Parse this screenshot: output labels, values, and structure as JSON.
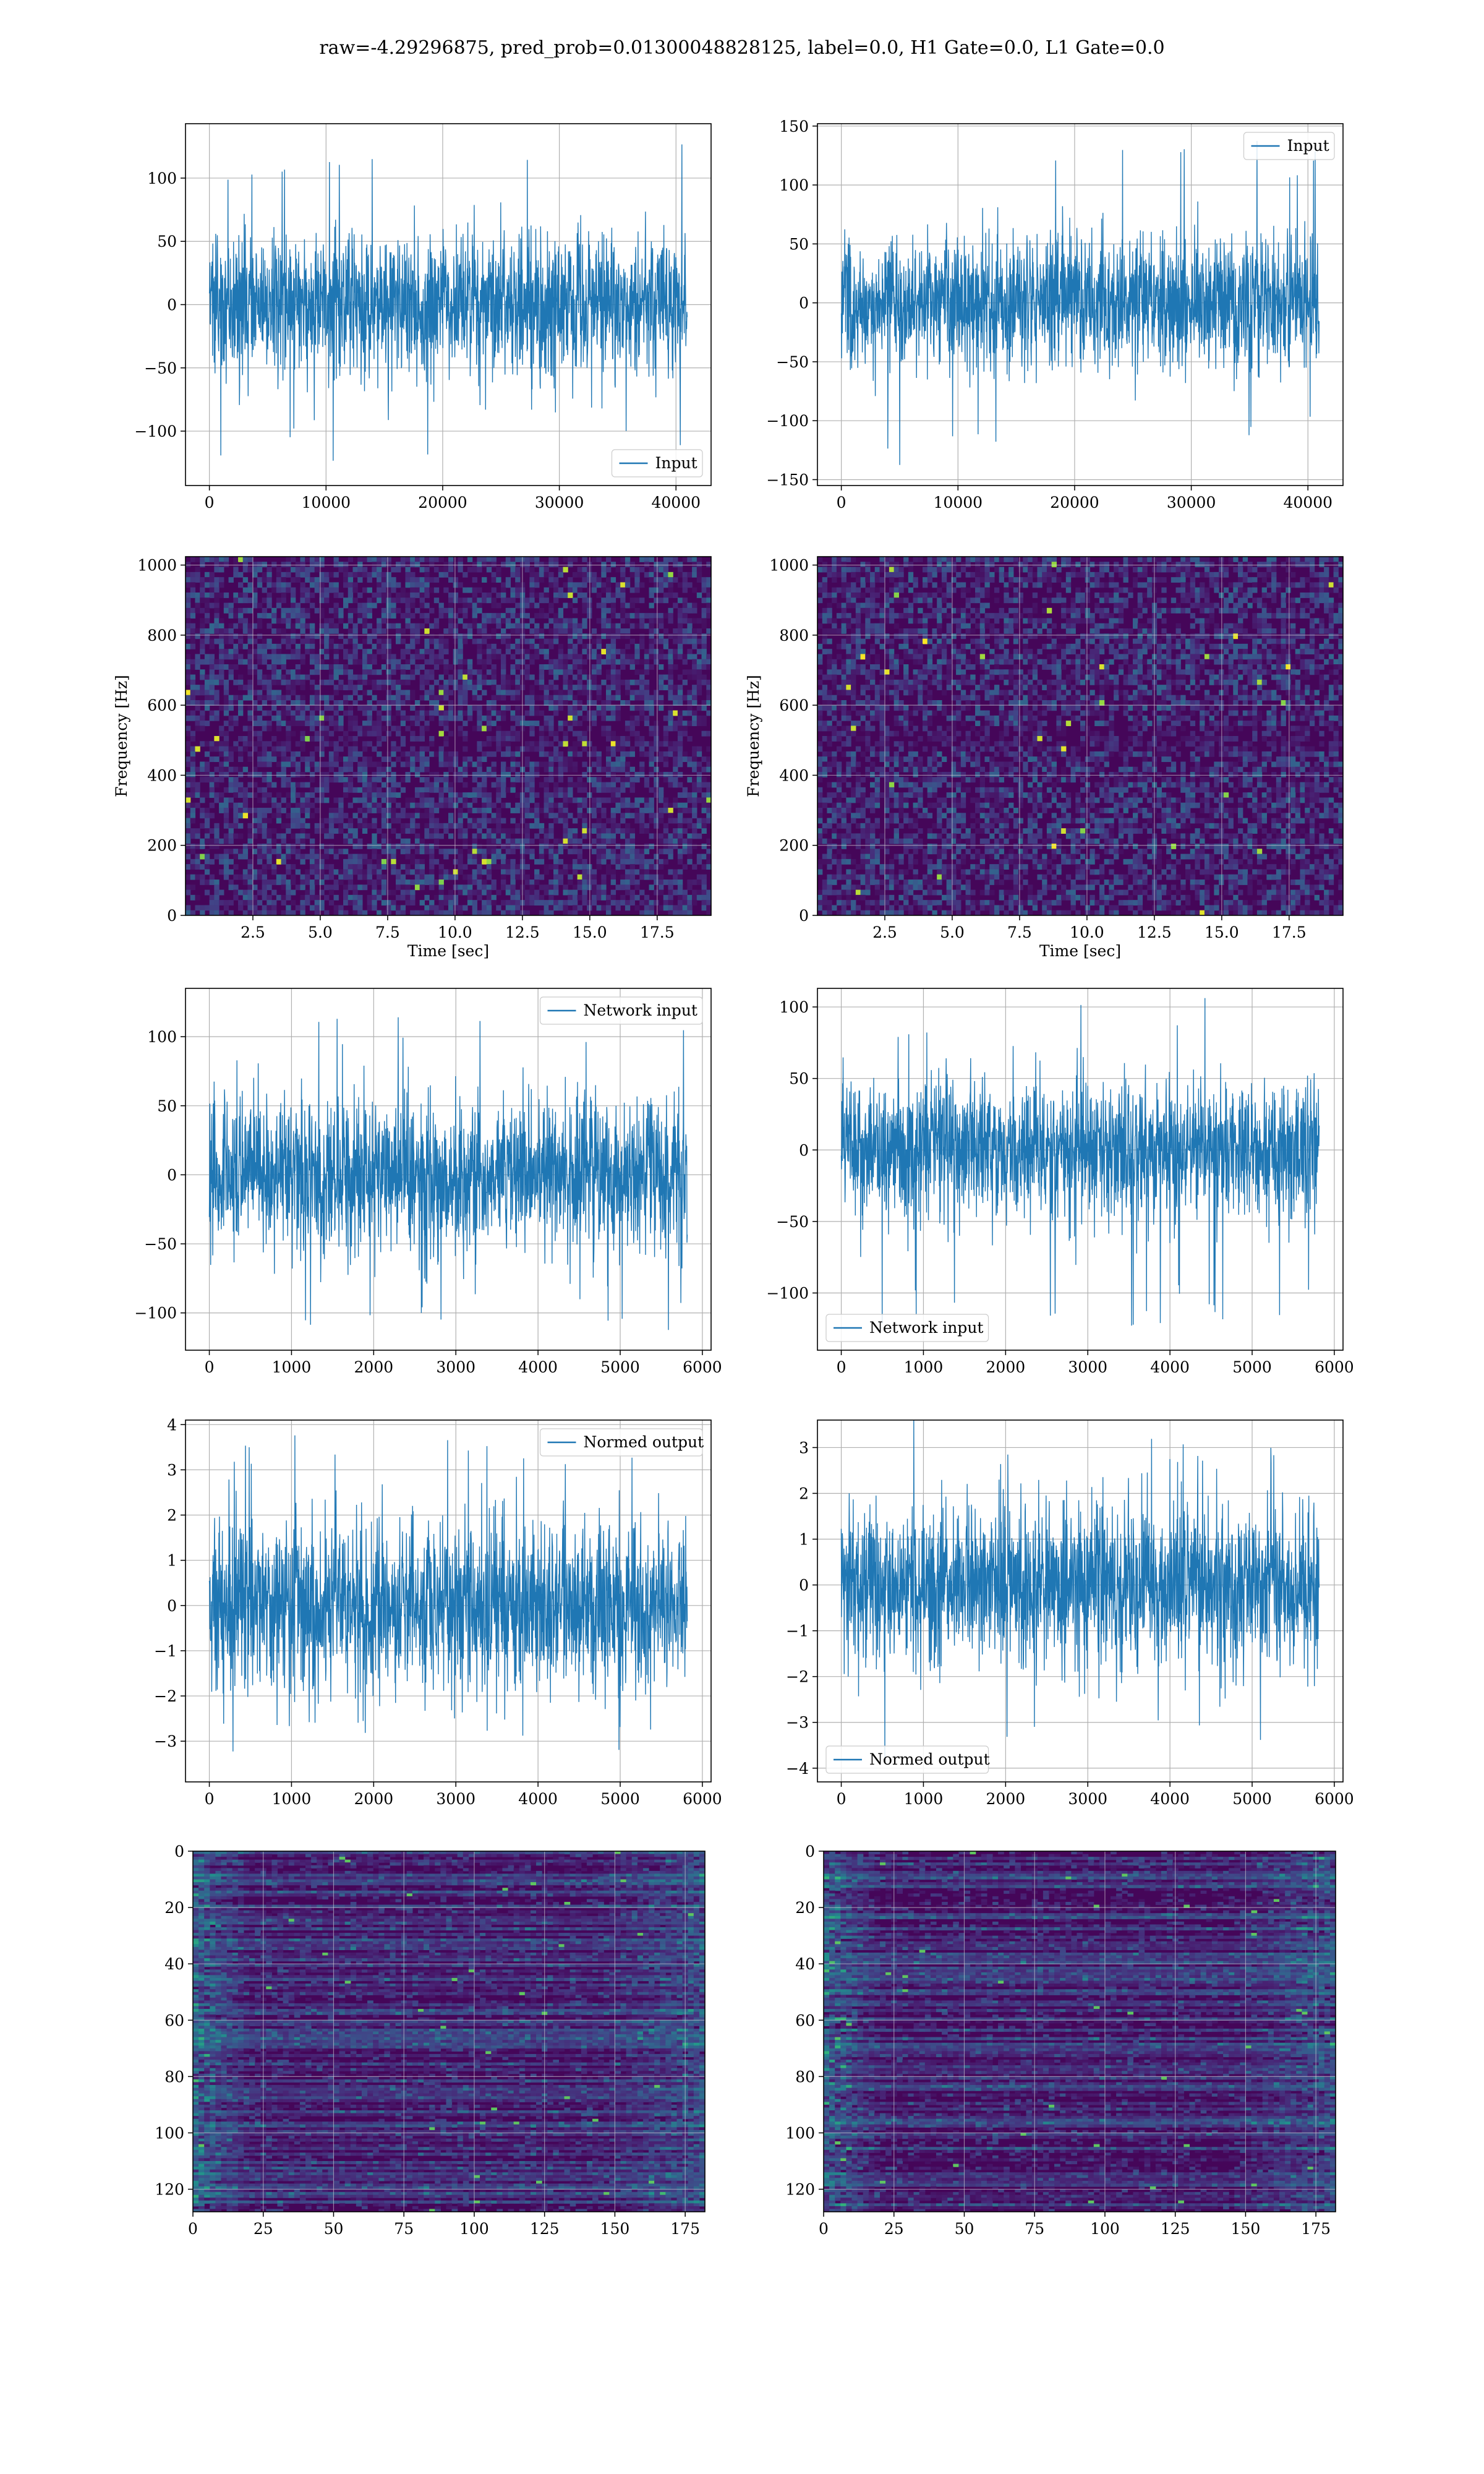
{
  "title": "raw=-4.29296875, pred_prob=0.01300048828125, label=0.0, H1 Gate=0.0, L1 Gate=0.0",
  "colors": {
    "series": "#1f77b4",
    "grid": "#b0b0b0",
    "viridis_dark": "#440154"
  },
  "chart_data": [
    {
      "id": "p1",
      "type": "line",
      "series_name": "Input",
      "legend": "lower-right",
      "x_range": [
        0,
        40960
      ],
      "xlim": [
        -2048,
        43008
      ],
      "ylim": [
        -143,
        143
      ],
      "xticks": [
        0,
        10000,
        20000,
        30000,
        40000
      ],
      "yticks": [
        -100,
        -50,
        0,
        50,
        100
      ],
      "xlabel": "",
      "ylabel": "",
      "amplitude_std": 28,
      "spike_max": 130,
      "spike_min": -130,
      "grid": true
    },
    {
      "id": "p2",
      "type": "line",
      "series_name": "Input",
      "legend": "upper-right",
      "x_range": [
        0,
        40960
      ],
      "xlim": [
        -2048,
        43008
      ],
      "ylim": [
        -155,
        152
      ],
      "xticks": [
        0,
        10000,
        20000,
        30000,
        40000
      ],
      "yticks": [
        -150,
        -100,
        -50,
        0,
        50,
        100,
        150
      ],
      "xlabel": "",
      "ylabel": "",
      "amplitude_std": 28,
      "spike_max": 138,
      "spike_min": -138,
      "grid": true
    },
    {
      "id": "p3",
      "type": "heatmap",
      "kind": "spectrogram",
      "xlim": [
        0,
        19.5
      ],
      "ylim": [
        0,
        1024
      ],
      "xticks": [
        2.5,
        5.0,
        7.5,
        10.0,
        12.5,
        15.0,
        17.5
      ],
      "yticks": [
        0,
        200,
        400,
        600,
        800,
        1000
      ],
      "xlabel": "Time [sec]",
      "ylabel": "Frequency [Hz]",
      "colormap": "viridis",
      "grid": true
    },
    {
      "id": "p4",
      "type": "heatmap",
      "kind": "spectrogram",
      "xlim": [
        0,
        19.5
      ],
      "ylim": [
        0,
        1024
      ],
      "xticks": [
        2.5,
        5.0,
        7.5,
        10.0,
        12.5,
        15.0,
        17.5
      ],
      "yticks": [
        0,
        200,
        400,
        600,
        800,
        1000
      ],
      "xlabel": "Time [sec]",
      "ylabel": "Frequency [Hz]",
      "colormap": "viridis",
      "grid": true
    },
    {
      "id": "p5",
      "type": "line",
      "series_name": "Network input",
      "legend": "upper-right",
      "x_range": [
        0,
        5816
      ],
      "xlim": [
        -290,
        6106
      ],
      "ylim": [
        -127,
        135
      ],
      "xticks": [
        0,
        1000,
        2000,
        3000,
        4000,
        5000,
        6000
      ],
      "yticks": [
        -100,
        -50,
        0,
        50,
        100
      ],
      "xlabel": "",
      "ylabel": "",
      "amplitude_std": 28,
      "spike_max": 122,
      "spike_min": -115,
      "grid": true
    },
    {
      "id": "p6",
      "type": "line",
      "series_name": "Network input",
      "legend": "lower-left",
      "x_range": [
        0,
        5816
      ],
      "xlim": [
        -290,
        6106
      ],
      "ylim": [
        -140,
        113
      ],
      "xticks": [
        0,
        1000,
        2000,
        3000,
        4000,
        5000,
        6000
      ],
      "yticks": [
        -100,
        -50,
        0,
        50,
        100
      ],
      "xlabel": "",
      "ylabel": "",
      "amplitude_std": 24,
      "spike_max": 108,
      "spike_min": -125,
      "grid": true
    },
    {
      "id": "p7",
      "type": "line",
      "series_name": "Normed output",
      "legend": "upper-right",
      "x_range": [
        0,
        5816
      ],
      "xlim": [
        -290,
        6106
      ],
      "ylim": [
        -3.9,
        4.1
      ],
      "xticks": [
        0,
        1000,
        2000,
        3000,
        4000,
        5000,
        6000
      ],
      "yticks": [
        -3,
        -2,
        -1,
        0,
        1,
        2,
        3,
        4
      ],
      "xlabel": "",
      "ylabel": "",
      "amplitude_std": 0.9,
      "spike_max": 3.8,
      "spike_min": -3.3,
      "grid": true
    },
    {
      "id": "p8",
      "type": "line",
      "series_name": "Normed output",
      "legend": "lower-left",
      "x_range": [
        0,
        5816
      ],
      "xlim": [
        -290,
        6106
      ],
      "ylim": [
        -4.3,
        3.6
      ],
      "xticks": [
        0,
        1000,
        2000,
        3000,
        4000,
        5000,
        6000
      ],
      "yticks": [
        -4,
        -3,
        -2,
        -1,
        0,
        1,
        2,
        3
      ],
      "xlabel": "",
      "ylabel": "",
      "amplitude_std": 0.9,
      "spike_max": 3.3,
      "spike_min": -3.9,
      "grid": true
    },
    {
      "id": "p9",
      "type": "heatmap",
      "kind": "feature-map",
      "xlim": [
        0,
        182
      ],
      "ylim": [
        128,
        0
      ],
      "xticks": [
        0,
        25,
        50,
        75,
        100,
        125,
        150,
        175
      ],
      "yticks": [
        0,
        20,
        40,
        60,
        80,
        100,
        120
      ],
      "xlabel": "",
      "ylabel": "",
      "colormap": "viridis",
      "grid": true
    },
    {
      "id": "p10",
      "type": "heatmap",
      "kind": "feature-map",
      "xlim": [
        0,
        182
      ],
      "ylim": [
        128,
        0
      ],
      "xticks": [
        0,
        25,
        50,
        75,
        100,
        125,
        150,
        175
      ],
      "yticks": [
        0,
        20,
        40,
        60,
        80,
        100,
        120
      ],
      "xlabel": "",
      "ylabel": "",
      "colormap": "viridis",
      "grid": true
    }
  ]
}
